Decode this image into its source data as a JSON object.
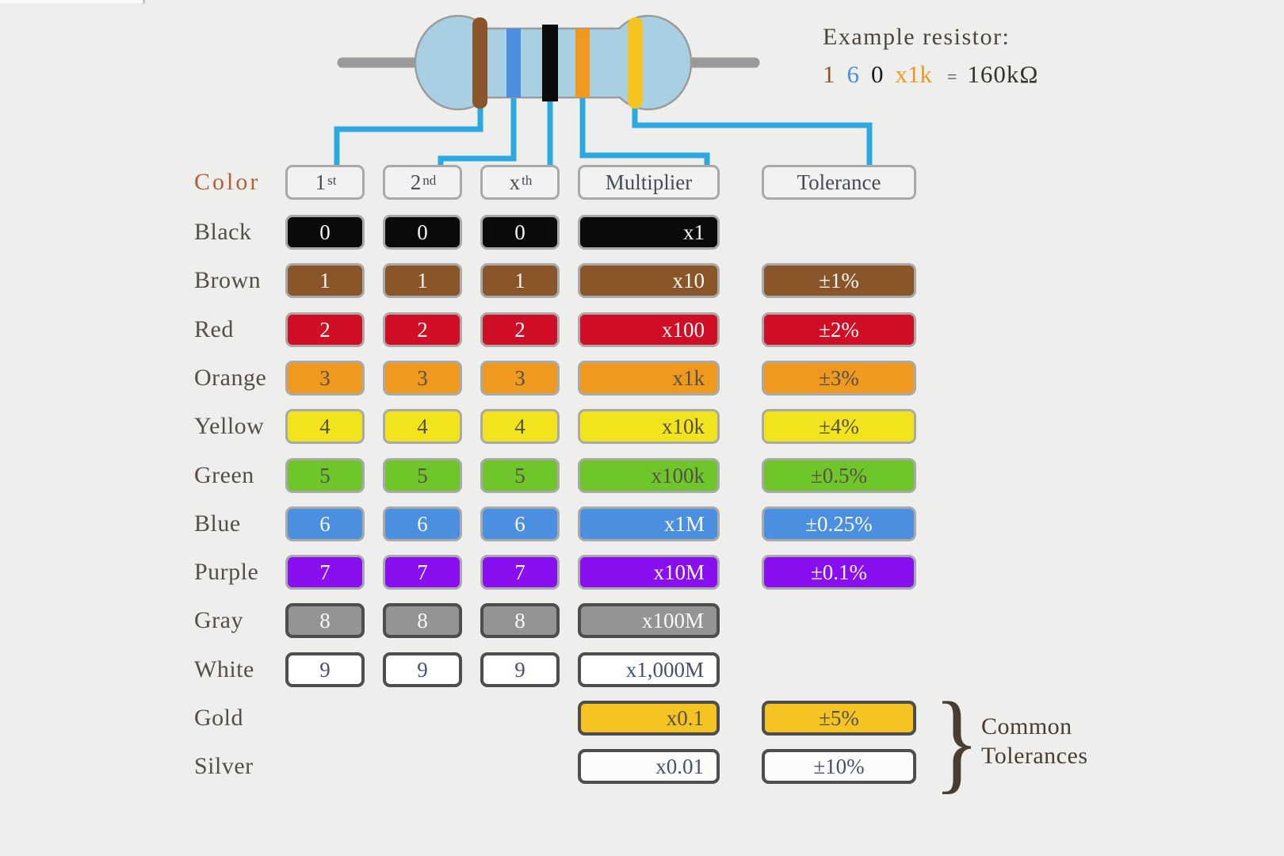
{
  "example": {
    "title": "Example resistor:",
    "parts": [
      {
        "text": "1",
        "color": "#8A5529",
        "role": "digit-1"
      },
      {
        "text": "6",
        "color": "#4A8FE0",
        "role": "digit-2"
      },
      {
        "text": "0",
        "color": "#1A1A1A",
        "role": "digit-3"
      },
      {
        "text": "x1k",
        "color": "#F0991F",
        "role": "multiplier"
      },
      {
        "text": "=",
        "color": "#4B453E",
        "role": "equals"
      },
      {
        "text": "160kΩ",
        "color": "#36322C",
        "role": "result"
      }
    ]
  },
  "resistor": {
    "body_color": "#A9CFE3",
    "outline_color": "#9A9A9A",
    "lead_color": "#999999",
    "connector_color": "#2BA9E0",
    "bands": [
      {
        "name": "brown",
        "color": "#8A5529"
      },
      {
        "name": "blue",
        "color": "#4A8FE0"
      },
      {
        "name": "black",
        "color": "#0B0B0B"
      },
      {
        "name": "orange",
        "color": "#F0991F"
      },
      {
        "name": "yellow",
        "color": "#F5C423"
      }
    ]
  },
  "table": {
    "color_header": "Color",
    "headers": [
      {
        "label": "1",
        "sup": "st"
      },
      {
        "label": "2",
        "sup": "nd"
      },
      {
        "label": "x",
        "sup": "th"
      },
      {
        "label": "Multiplier",
        "sup": ""
      },
      {
        "label": "Tolerance",
        "sup": ""
      }
    ],
    "rows": [
      {
        "label": "Black",
        "fill": "#0A0A0A",
        "border": "light",
        "text": "light",
        "digits": [
          "0",
          "0",
          "0"
        ],
        "multiplier": "x1",
        "tolerance": null
      },
      {
        "label": "Brown",
        "fill": "#8A5529",
        "border": "light",
        "text": "light",
        "digits": [
          "1",
          "1",
          "1"
        ],
        "multiplier": "x10",
        "tolerance": "±1%"
      },
      {
        "label": "Red",
        "fill": "#D00E26",
        "border": "light",
        "text": "light",
        "digits": [
          "2",
          "2",
          "2"
        ],
        "multiplier": "x100",
        "tolerance": "±2%"
      },
      {
        "label": "Orange",
        "fill": "#F0991F",
        "border": "light",
        "text": "dark",
        "digits": [
          "3",
          "3",
          "3"
        ],
        "multiplier": "x1k",
        "tolerance": "±3%"
      },
      {
        "label": "Yellow",
        "fill": "#F1E41D",
        "border": "light",
        "text": "dark",
        "digits": [
          "4",
          "4",
          "4"
        ],
        "multiplier": "x10k",
        "tolerance": "±4%"
      },
      {
        "label": "Green",
        "fill": "#6FC62B",
        "border": "light",
        "text": "dark",
        "digits": [
          "5",
          "5",
          "5"
        ],
        "multiplier": "x100k",
        "tolerance": "±0.5%"
      },
      {
        "label": "Blue",
        "fill": "#4A8FE0",
        "border": "light",
        "text": "light",
        "digits": [
          "6",
          "6",
          "6"
        ],
        "multiplier": "x1M",
        "tolerance": "±0.25%"
      },
      {
        "label": "Purple",
        "fill": "#8A0FF0",
        "border": "light",
        "text": "light",
        "digits": [
          "7",
          "7",
          "7"
        ],
        "multiplier": "x10M",
        "tolerance": "±0.1%"
      },
      {
        "label": "Gray",
        "fill": "#949494",
        "border": "dark",
        "text": "light",
        "digits": [
          "8",
          "8",
          "8"
        ],
        "multiplier": "x100M",
        "tolerance": null
      },
      {
        "label": "White",
        "fill": "#FFFFFF",
        "border": "dark",
        "text": "slate",
        "digits": [
          "9",
          "9",
          "9"
        ],
        "multiplier": "x1,000M",
        "tolerance": null
      },
      {
        "label": "Gold",
        "fill": "#F5C423",
        "border": "dark",
        "text": "dark",
        "digits": null,
        "multiplier": "x0.1",
        "tolerance": "±5%"
      },
      {
        "label": "Silver",
        "fill": "#FCFCFA",
        "border": "dark",
        "text": "slate",
        "digits": null,
        "multiplier": "x0.01",
        "tolerance": "±10%"
      }
    ]
  },
  "footer": {
    "brace": "}",
    "line1": "Common",
    "line2": "Tolerances"
  }
}
